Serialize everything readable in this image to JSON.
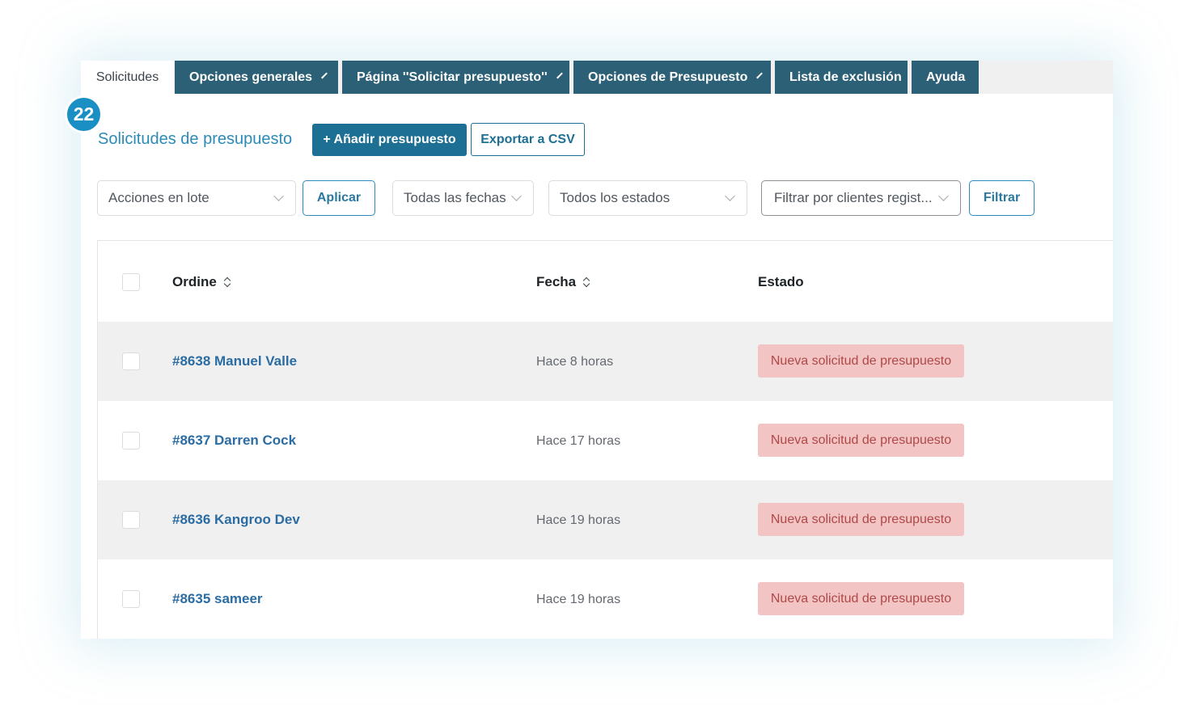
{
  "badge": "22",
  "tabs": [
    {
      "label": "Solicitudes",
      "active": true,
      "dropdown": false
    },
    {
      "label": "Opciones generales",
      "active": false,
      "dropdown": true
    },
    {
      "label": "Página ''Solicitar presupuesto''",
      "active": false,
      "dropdown": true
    },
    {
      "label": "Opciones de Presupuesto",
      "active": false,
      "dropdown": true
    },
    {
      "label": "Lista de exclusión",
      "active": false,
      "dropdown": false
    },
    {
      "label": "Ayuda",
      "active": false,
      "dropdown": false
    }
  ],
  "header": {
    "title": "Solicitudes de presupuesto",
    "add_button": "+ Añadir presupuesto",
    "export_button": "Exportar a CSV"
  },
  "filters": {
    "bulk_actions": "Acciones en lote",
    "apply_button": "Aplicar",
    "dates": "Todas las fechas",
    "statuses": "Todos los estados",
    "customer_filter": "Filtrar por clientes regist...",
    "filter_button": "Filtrar"
  },
  "table": {
    "columns": {
      "order": "Ordine",
      "date": "Fecha",
      "status": "Estado"
    },
    "rows": [
      {
        "order": "#8638 Manuel Valle",
        "date": "Hace 8 horas",
        "status": "Nueva solicitud de presupuesto"
      },
      {
        "order": "#8637 Darren Cock",
        "date": "Hace 17 horas",
        "status": "Nueva solicitud de presupuesto"
      },
      {
        "order": "#8636 Kangroo Dev",
        "date": "Hace 19 horas",
        "status": "Nueva solicitud de presupuesto"
      },
      {
        "order": "#8635 sameer",
        "date": "Hace 19 horas",
        "status": "Nueva solicitud de presupuesto"
      }
    ]
  },
  "colors": {
    "tab_bg": "#2b6076",
    "primary": "#1d6f93",
    "link": "#2b6ca3",
    "badge": "#1a8fc3",
    "status_bg": "#f2c4c4",
    "status_text": "#b04848"
  }
}
